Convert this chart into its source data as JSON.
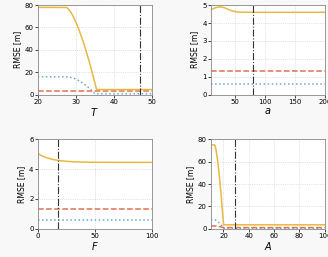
{
  "panel_T": {
    "xlabel": "T",
    "xlim": [
      20,
      50
    ],
    "xticks": [
      20,
      30,
      40,
      50
    ],
    "ylim": [
      0,
      80
    ],
    "yticks": [
      0,
      20,
      40,
      60,
      80
    ],
    "vline": 47,
    "east_start": 16.0,
    "east_flat": 0.8,
    "east_drop_start": 27.5,
    "east_drop_end": 35.0,
    "north_flat": 3.0,
    "up_start": 78.0,
    "up_flat": 4.5,
    "up_drop_start": 27.5,
    "up_drop_end": 35.5
  },
  "panel_a": {
    "xlabel": "a",
    "xlim": [
      10,
      200
    ],
    "xticks": [
      50,
      100,
      150,
      200
    ],
    "ylim": [
      0,
      5
    ],
    "yticks": [
      0,
      1,
      2,
      3,
      4,
      5
    ],
    "vline": 80,
    "east_flat": 0.6,
    "north_flat": 1.3,
    "up_flat": 4.6,
    "up_peak": 4.9,
    "up_peak_x": 25
  },
  "panel_F": {
    "xlabel": "F",
    "xlim": [
      0,
      100
    ],
    "xticks": [
      0,
      50,
      100
    ],
    "ylim": [
      0,
      6
    ],
    "yticks": [
      0,
      2,
      4,
      6
    ],
    "vline": 18,
    "east_flat": 0.6,
    "north_flat": 1.35,
    "up_start": 5.05,
    "up_flat": 4.45
  },
  "panel_A": {
    "xlabel": "A",
    "xlim": [
      10,
      100
    ],
    "xticks": [
      20,
      40,
      60,
      80,
      100
    ],
    "ylim": [
      0,
      80
    ],
    "yticks": [
      0,
      20,
      40,
      60,
      80
    ],
    "vline": 29,
    "east_flat": 0.5,
    "north_flat": 1.0,
    "up_start": 75.0,
    "up_flat": 3.5,
    "up_drop_start": 13,
    "up_drop_end": 20
  },
  "colors": {
    "east": "#6ea6d7",
    "north": "#e07050",
    "up": "#e8b840"
  },
  "bg_color": "#f8f8f8",
  "axes_bg": "#ffffff",
  "lw": 1.1,
  "grid_color": "#c8c8c8",
  "grid_style": "dotted"
}
